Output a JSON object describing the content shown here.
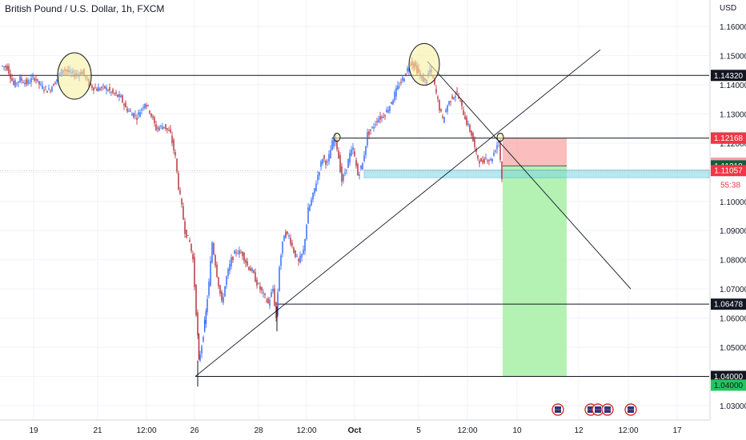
{
  "title": "British Pound / U.S. Dollar, 1h, FXCM",
  "currency": "USD",
  "colors": {
    "up": "#2962ff",
    "down": "#b22833",
    "grid": "#f0f3fa",
    "stop_zone": "#f9a7a7",
    "target_zone": "#a7f0a7",
    "support_band": "#7fd6e6",
    "highlight": "#f7ef9a",
    "line": "#131722"
  },
  "chart_data": {
    "type": "candlestick",
    "ylim": [
      1.025,
      1.165
    ],
    "xlim": [
      0,
      932
    ],
    "y_ticks": [
      1.03,
      1.04,
      1.05,
      1.06,
      1.07,
      1.08,
      1.09,
      1.1,
      1.11,
      1.12,
      1.13,
      1.14,
      1.15,
      1.16
    ],
    "y_tick_labels": [
      "1.03000",
      "1.04000",
      "1.05000",
      "1.06000",
      "1.07000",
      "1.08000",
      "1.09000",
      "1.10000",
      "1.11000",
      "1.12000",
      "1.13000",
      "1.14000",
      "1.15000",
      "1.16000"
    ],
    "x_ticks": [
      {
        "label": "19",
        "x": 42
      },
      {
        "label": "21",
        "x": 122
      },
      {
        "label": "12:00",
        "x": 183
      },
      {
        "label": "26",
        "x": 243
      },
      {
        "label": "28",
        "x": 323
      },
      {
        "label": "12:00",
        "x": 383
      },
      {
        "label": "Oct",
        "x": 443,
        "bold": true
      },
      {
        "label": "5",
        "x": 523
      },
      {
        "label": "12:00",
        "x": 584
      },
      {
        "label": "10",
        "x": 646
      },
      {
        "label": "12",
        "x": 723
      },
      {
        "label": "12:00",
        "x": 785
      },
      {
        "label": "17",
        "x": 846
      }
    ],
    "price_path": [
      [
        2,
        1.1465
      ],
      [
        10,
        1.146
      ],
      [
        18,
        1.14
      ],
      [
        26,
        1.142
      ],
      [
        34,
        1.1405
      ],
      [
        44,
        1.1425
      ],
      [
        52,
        1.1395
      ],
      [
        62,
        1.138
      ],
      [
        72,
        1.142
      ],
      [
        80,
        1.1455
      ],
      [
        88,
        1.144
      ],
      [
        96,
        1.1435
      ],
      [
        104,
        1.1445
      ],
      [
        112,
        1.14
      ],
      [
        122,
        1.1385
      ],
      [
        132,
        1.139
      ],
      [
        142,
        1.137
      ],
      [
        152,
        1.1355
      ],
      [
        158,
        1.132
      ],
      [
        166,
        1.13
      ],
      [
        172,
        1.129
      ],
      [
        182,
        1.134
      ],
      [
        188,
        1.131
      ],
      [
        196,
        1.125
      ],
      [
        206,
        1.126
      ],
      [
        214,
        1.123
      ],
      [
        220,
        1.115
      ],
      [
        224,
        1.105
      ],
      [
        228,
        1.098
      ],
      [
        232,
        1.09
      ],
      [
        238,
        1.086
      ],
      [
        242,
        1.08
      ],
      [
        246,
        1.062
      ],
      [
        249,
        1.045
      ],
      [
        253,
        1.051
      ],
      [
        258,
        1.062
      ],
      [
        262,
        1.072
      ],
      [
        266,
        1.086
      ],
      [
        272,
        1.075
      ],
      [
        278,
        1.065
      ],
      [
        284,
        1.074
      ],
      [
        290,
        1.08
      ],
      [
        296,
        1.083
      ],
      [
        304,
        1.082
      ],
      [
        310,
        1.078
      ],
      [
        316,
        1.076
      ],
      [
        322,
        1.072
      ],
      [
        330,
        1.068
      ],
      [
        336,
        1.065
      ],
      [
        342,
        1.07
      ],
      [
        346,
        1.06
      ],
      [
        350,
        1.078
      ],
      [
        356,
        1.089
      ],
      [
        362,
        1.088
      ],
      [
        368,
        1.083
      ],
      [
        374,
        1.079
      ],
      [
        380,
        1.083
      ],
      [
        386,
        1.097
      ],
      [
        392,
        1.102
      ],
      [
        398,
        1.109
      ],
      [
        404,
        1.115
      ],
      [
        410,
        1.113
      ],
      [
        416,
        1.12
      ],
      [
        420,
        1.122
      ],
      [
        424,
        1.115
      ],
      [
        428,
        1.107
      ],
      [
        432,
        1.11
      ],
      [
        438,
        1.116
      ],
      [
        442,
        1.118
      ],
      [
        448,
        1.109
      ],
      [
        454,
        1.113
      ],
      [
        460,
        1.123
      ],
      [
        466,
        1.125
      ],
      [
        472,
        1.128
      ],
      [
        478,
        1.129
      ],
      [
        484,
        1.131
      ],
      [
        490,
        1.134
      ],
      [
        496,
        1.138
      ],
      [
        502,
        1.141
      ],
      [
        508,
        1.144
      ],
      [
        514,
        1.148
      ],
      [
        520,
        1.146
      ],
      [
        526,
        1.143
      ],
      [
        532,
        1.141
      ],
      [
        538,
        1.145
      ],
      [
        542,
        1.142
      ],
      [
        546,
        1.137
      ],
      [
        550,
        1.132
      ],
      [
        554,
        1.128
      ],
      [
        560,
        1.133
      ],
      [
        566,
        1.136
      ],
      [
        572,
        1.137
      ],
      [
        578,
        1.132
      ],
      [
        584,
        1.127
      ],
      [
        590,
        1.123
      ],
      [
        596,
        1.116
      ],
      [
        602,
        1.113
      ],
      [
        608,
        1.115
      ],
      [
        614,
        1.114
      ],
      [
        620,
        1.118
      ],
      [
        624,
        1.121
      ],
      [
        628,
        1.108
      ]
    ],
    "horizontal_levels": [
      {
        "value": 1.1432,
        "label": "1.14320",
        "x_start": 0,
        "color": "#131722"
      },
      {
        "value": 1.12172,
        "label": "1.12172",
        "x_start": 415,
        "color": "#131722"
      },
      {
        "value": 1.06478,
        "label": "1.06478",
        "x_start": 346,
        "color": "#131722"
      },
      {
        "value": 1.04,
        "label": "1.04000",
        "x_start": 244,
        "color": "#131722"
      }
    ],
    "trendlines": [
      {
        "x1": 244,
        "y1": 1.04,
        "x2": 750,
        "y2": 1.152
      },
      {
        "x1": 534,
        "y1": 1.148,
        "x2": 788,
        "y2": 1.07
      }
    ],
    "current_price_line": 1.11057,
    "support_band": {
      "x1": 455,
      "x2": 886,
      "top": 1.1108,
      "bottom": 1.1095
    },
    "trade": {
      "x1": 628,
      "x2": 708,
      "stop": 1.12168,
      "entry": 1.11218,
      "target": 1.04
    },
    "highlight_circles": [
      {
        "cx": 93,
        "cy": 1.143,
        "rx": 21,
        "ry": 29
      },
      {
        "cx": 530,
        "cy": 1.147,
        "rx": 19,
        "ry": 26
      },
      {
        "cx": 421,
        "cy": 1.122,
        "rx": 4,
        "ry": 5
      },
      {
        "cx": 625,
        "cy": 1.122,
        "rx": 4,
        "ry": 5
      }
    ],
    "price_badges": [
      {
        "value": 1.1432,
        "label": "1.14320",
        "bg": "#131722",
        "fg": "#ffffff"
      },
      {
        "value": 1.12172,
        "label": "1.12172",
        "bg": "#131722",
        "fg": "#ffffff"
      },
      {
        "value": 1.12168,
        "label": "1.12168",
        "bg": "#f23645",
        "fg": "#ffffff"
      },
      {
        "value": 1.11313,
        "label": "1.11313",
        "bg": "#f7a1a8",
        "fg": "#ffffff"
      },
      {
        "value": 1.11218,
        "label": "1.11218",
        "bg": "#0f5e3c",
        "fg": "#ffffff"
      },
      {
        "value": 1.11057,
        "label": "1.11057",
        "bg": "#f23645",
        "fg": "#ffffff"
      },
      {
        "value": 1.06478,
        "label": "1.06478",
        "bg": "#131722",
        "fg": "#ffffff"
      },
      {
        "value": 1.04,
        "label": "1.04000",
        "bg": "#131722",
        "fg": "#ffffff"
      },
      {
        "value": 1.037,
        "label": "1.04000",
        "bg": "#22c55e",
        "fg": "#131722"
      }
    ],
    "countdown": {
      "value": 1.1088,
      "label": "55:38"
    },
    "event_flags": [
      {
        "x": 697
      },
      {
        "x": 738
      },
      {
        "x": 747
      },
      {
        "x": 759
      },
      {
        "x": 788
      }
    ]
  }
}
